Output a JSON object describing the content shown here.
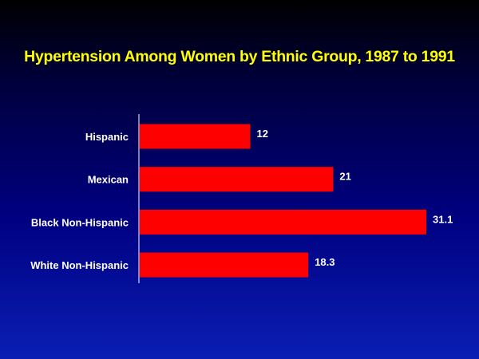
{
  "chart_data": {
    "type": "bar",
    "orientation": "horizontal",
    "title": "Hypertension Among Women by Ethnic Group, 1987 to 1991",
    "categories": [
      "Hispanic",
      "Mexican",
      "Black Non-Hispanic",
      "White Non-Hispanic"
    ],
    "values": [
      12,
      21,
      31.1,
      18.3
    ],
    "data_labels": [
      "12",
      "21",
      "31.1",
      "18.3"
    ],
    "xlim": [
      0,
      31.1
    ],
    "xlabel": "",
    "ylabel": "",
    "grid": false,
    "legend": "none",
    "colors": {
      "bar": "#ff0000",
      "title": "#ffff00",
      "text": "#ffffff",
      "axis": "#ffffff",
      "background_top": "#000000",
      "background_bottom": "#0a1eb4"
    }
  }
}
